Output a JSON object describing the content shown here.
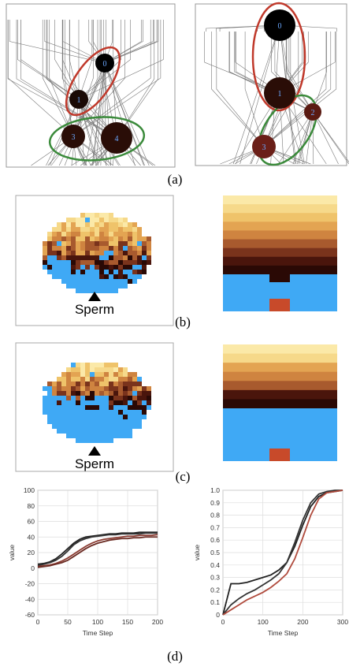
{
  "captions": [
    "(a)",
    "(b)",
    "(c)",
    "(d)"
  ],
  "panel_a": {
    "left_nodes": [
      "0",
      "1",
      "3",
      "4"
    ],
    "right_nodes": [
      "0",
      "1",
      "2",
      "3"
    ]
  },
  "panel_b": {
    "label": "Sperm"
  },
  "panel_c": {
    "label": "Sperm"
  },
  "chart_data": [
    {
      "type": "line",
      "x_label": "Time Step",
      "y_label": "value",
      "x": [
        0,
        10,
        20,
        30,
        40,
        50,
        60,
        70,
        80,
        90,
        100,
        110,
        120,
        130,
        140,
        150,
        160,
        170,
        180,
        190,
        200
      ],
      "xlim": [
        0,
        200
      ],
      "xticks": [
        0,
        50,
        100,
        150,
        200
      ],
      "ylim": [
        -60,
        100
      ],
      "yticks": [
        -60,
        -40,
        -20,
        0,
        20,
        40,
        60,
        80,
        100
      ],
      "grid": true,
      "series": [
        {
          "color": "#222222",
          "values": [
            5,
            6,
            8,
            12,
            18,
            25,
            32,
            37,
            40,
            41,
            42,
            43,
            44,
            44,
            45,
            45,
            45,
            46,
            46,
            46,
            46
          ]
        },
        {
          "color": "#333333",
          "values": [
            3,
            5,
            7,
            10,
            15,
            22,
            30,
            35,
            38,
            40,
            41,
            42,
            43,
            43,
            44,
            44,
            44,
            44,
            45,
            45,
            45
          ]
        },
        {
          "color": "#8a3a30",
          "values": [
            2,
            3,
            4,
            6,
            9,
            13,
            18,
            23,
            28,
            32,
            35,
            37,
            38,
            39,
            40,
            41,
            41,
            42,
            42,
            42,
            43
          ]
        },
        {
          "color": "#6a2a22",
          "values": [
            1,
            2,
            3,
            5,
            7,
            10,
            15,
            20,
            25,
            29,
            32,
            34,
            36,
            37,
            38,
            38,
            39,
            39,
            40,
            40,
            40
          ]
        }
      ]
    },
    {
      "type": "line",
      "x_label": "Time Step",
      "y_label": "value",
      "x": [
        0,
        20,
        40,
        60,
        80,
        100,
        120,
        140,
        160,
        180,
        200,
        220,
        240,
        260,
        280,
        300
      ],
      "xlim": [
        0,
        300
      ],
      "xticks": [
        0,
        100,
        200,
        300
      ],
      "ylim": [
        0,
        1
      ],
      "yticks": [
        0,
        0.1,
        0.2,
        0.3,
        0.4,
        0.5,
        0.6,
        0.7,
        0.8,
        0.9,
        {
          "value": 1,
          "label": "1.0"
        }
      ],
      "grid": true,
      "series": [
        {
          "color": "#222222",
          "values": [
            0,
            0.25,
            0.25,
            0.26,
            0.28,
            0.3,
            0.32,
            0.36,
            0.42,
            0.55,
            0.72,
            0.87,
            0.95,
            0.98,
            0.99,
            1.0
          ]
        },
        {
          "color": "#333333",
          "values": [
            0,
            0.08,
            0.13,
            0.17,
            0.2,
            0.24,
            0.28,
            0.33,
            0.42,
            0.58,
            0.76,
            0.9,
            0.97,
            0.99,
            1.0,
            1.0
          ]
        },
        {
          "color": "#b04a3c",
          "values": [
            0,
            0.04,
            0.08,
            0.12,
            0.15,
            0.18,
            0.22,
            0.27,
            0.33,
            0.45,
            0.62,
            0.8,
            0.93,
            0.98,
            0.99,
            1.0
          ]
        }
      ]
    }
  ]
}
